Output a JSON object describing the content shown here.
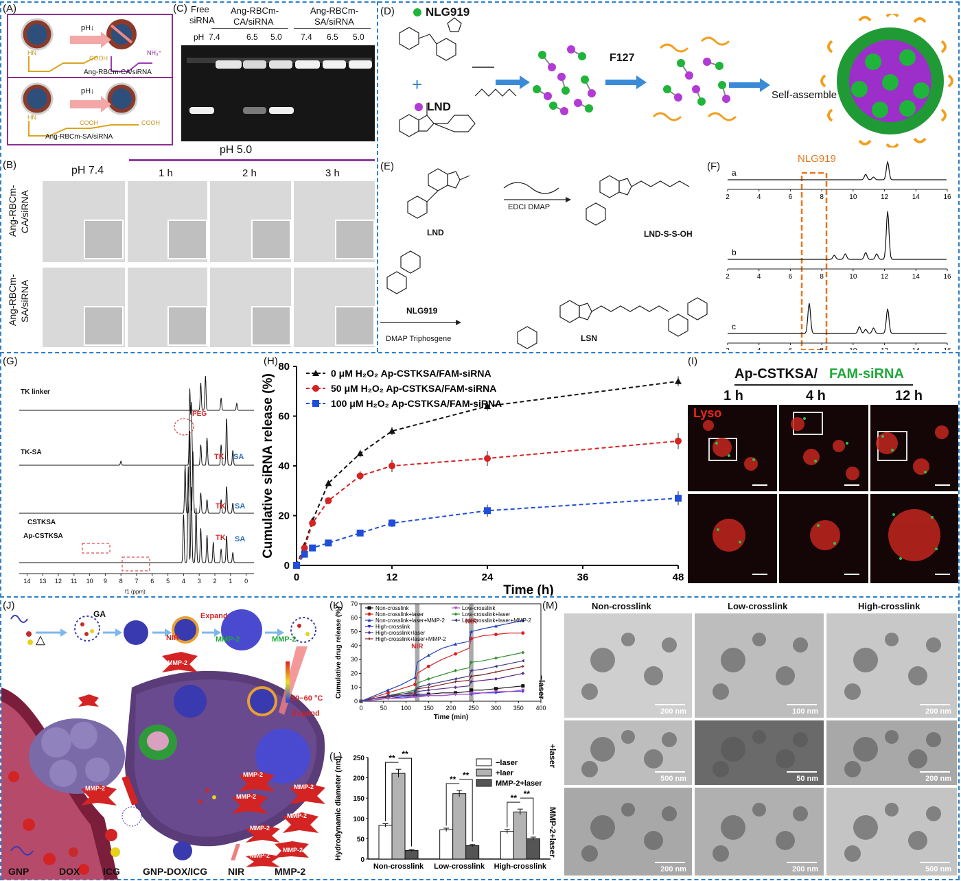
{
  "panel_letters": {
    "A": "(A)",
    "B": "(B)",
    "C": "(C)",
    "D": "(D)",
    "E": "(E)",
    "F": "(F)",
    "G": "(G)",
    "H": "(H)",
    "I": "(I)",
    "J": "(J)",
    "K": "(K)",
    "L": "(L)",
    "M": "(M)"
  },
  "panelA": {
    "ph_arrow": "pH↓",
    "caption_top": "Ang-RBCm-CA/siRNA",
    "caption_bottom": "Ang-RBCm-SA/siRNA",
    "cooh": "COOH",
    "nh3": "NH₃⁺",
    "hn": "HN",
    "o": "O"
  },
  "panelC": {
    "free": "Free",
    "sirna": "siRNA",
    "ca_label": "Ang-RBCm-CA/siRNA",
    "ca_line1": "Ang-RBCm-",
    "ca_line2": "CA/siRNA",
    "sa_line1": "Ang-RBCm-",
    "sa_line2": "SA/siRNA",
    "ph": "pH",
    "ph_values": [
      "7.4",
      "6.5",
      "5.0",
      "7.4",
      "6.5",
      "5.0"
    ]
  },
  "panelB": {
    "ph74": "pH 7.4",
    "ph50": "pH 5.0",
    "times": [
      "1 h",
      "2 h",
      "3 h"
    ],
    "row1": "Ang-RBCm-CA/siRNA",
    "row2": "Ang-RBCm-SA/siRNA",
    "row1_l1": "Ang-RBCm-",
    "row1_l2": "CA/siRNA",
    "row2_l1": "Ang-RBCm-",
    "row2_l2": "SA/siRNA"
  },
  "panelD": {
    "nlg": "NLG919",
    "lnd": "LND",
    "plus": "+",
    "f127": "F127",
    "self": "Self-assemble"
  },
  "panelE": {
    "edci": "EDCI   DMAP",
    "lnd": "LND",
    "lndss": "LND-S-S-OH",
    "nlg": "NLG919",
    "dmap": "DMAP   Triphosgene",
    "lsn": "LSN",
    "oh": "OH",
    "cl": "Cl",
    "ho": "HO"
  },
  "panelF": {
    "marker": "NLG919",
    "traces": [
      "a",
      "b",
      "c"
    ],
    "ticks": [
      "2",
      "4",
      "6",
      "8",
      "10",
      "12",
      "14",
      "16"
    ]
  },
  "panelG": {
    "tk_linker": "TK linker",
    "tk_sa": "TK-SA",
    "cstksa": "CSTKSA",
    "ap": "Ap-CSTKSA",
    "peg": "PEG",
    "tk": "TK",
    "sa": "SA",
    "xaxis": "f1 (ppm)",
    "ticks": [
      "14",
      "13",
      "12",
      "11",
      "10",
      "9",
      "8",
      "7",
      "6",
      "5",
      "4",
      "3",
      "2",
      "1",
      "0"
    ]
  },
  "panelH": {
    "chart_data": {
      "type": "line",
      "x": [
        0,
        1,
        2,
        4,
        8,
        12,
        24,
        48
      ],
      "series": [
        {
          "name": "0 μM H₂O₂ Ap-CSTKSA/FAM-siRNA",
          "values": [
            0,
            8,
            18,
            33,
            45,
            54,
            64,
            74
          ],
          "errors": [
            0,
            0.8,
            1,
            1.2,
            1.5,
            1.6,
            1.8,
            2
          ],
          "color": "#111111",
          "marker": "triangle"
        },
        {
          "name": "50 μM H₂O₂ Ap-CSTKSA/FAM-siRNA",
          "values": [
            0,
            7,
            17,
            26,
            36,
            40,
            43,
            50
          ],
          "errors": [
            0,
            0.8,
            1,
            1.2,
            1.8,
            2.5,
            3,
            3.2
          ],
          "color": "#d42323",
          "marker": "circle"
        },
        {
          "name": "100 μM H₂O₂ Ap-CSTKSA/FAM-siRNA",
          "values": [
            0,
            4.5,
            7,
            9,
            13,
            17,
            22,
            27
          ],
          "errors": [
            0,
            0.6,
            0.8,
            1,
            1.3,
            1.6,
            2.4,
            2.8
          ],
          "color": "#1f4ed8",
          "marker": "square"
        }
      ],
      "xlabel": "Time (h)",
      "ylabel": "Cumulative siRNA release (%)",
      "xlim": [
        0,
        48
      ],
      "ylim": [
        0,
        80
      ],
      "xticks": [
        0,
        12,
        24,
        36,
        48
      ],
      "yticks": [
        0,
        20,
        40,
        60,
        80
      ]
    }
  },
  "panelI": {
    "title1": "Ap-CSTKSA/",
    "title2": "FAM-siRNA",
    "times": [
      "1 h",
      "4 h",
      "12 h"
    ],
    "lyso": "Lyso"
  },
  "panelJ": {
    "ga": "GA",
    "expand": "Expand",
    "nir": "NIR",
    "mmp": "MMP-2",
    "temp": "50−60 °C",
    "legend": [
      "GNP",
      "DOX",
      "ICG",
      "GNP-DOX/ICG",
      "NIR",
      "MMP-2"
    ],
    "delta": "△"
  },
  "panelK": {
    "chart_data": {
      "type": "line",
      "x": [
        0,
        30,
        60,
        90,
        120,
        125,
        150,
        180,
        210,
        240,
        245,
        270,
        300,
        330,
        360
      ],
      "series": [
        {
          "name": "Non-crosslink",
          "values": [
            0,
            2,
            3,
            4,
            4,
            5,
            5,
            6,
            6,
            7,
            8,
            8,
            9,
            10,
            11
          ],
          "color": "#111111",
          "marker": "square"
        },
        {
          "name": "Non-crosslink+laser",
          "values": [
            0,
            3,
            6,
            9,
            12,
            20,
            25,
            30,
            34,
            38,
            45,
            47,
            48,
            49,
            49
          ],
          "color": "#d42323",
          "marker": "circle"
        },
        {
          "name": "Non-crosslink+laser+MMP-2",
          "values": [
            0,
            4,
            8,
            12,
            17,
            28,
            33,
            38,
            41,
            43,
            50,
            52,
            54,
            56,
            58
          ],
          "color": "#1f3fbf",
          "marker": "triangle"
        },
        {
          "name": "High-crosslink",
          "values": [
            0,
            1,
            2,
            3,
            3,
            4,
            4,
            4,
            5,
            5,
            5,
            6,
            6,
            7,
            7
          ],
          "color": "#2b2bd6",
          "marker": "triangle-down"
        },
        {
          "name": "High-crosslink+laser",
          "values": [
            0,
            2,
            3,
            4,
            5,
            7,
            8,
            9,
            10,
            11,
            14,
            15,
            16,
            18,
            20
          ],
          "color": "#5b2c8c",
          "marker": "diamond"
        },
        {
          "name": "High-crosslink+laser+MMP-2",
          "values": [
            0,
            2,
            3,
            5,
            6,
            9,
            10,
            12,
            14,
            15,
            18,
            19,
            21,
            23,
            25
          ],
          "color": "#7a1f1f",
          "marker": "star"
        },
        {
          "name": "Low-crosslink",
          "values": [
            0,
            1,
            2,
            2,
            3,
            3,
            4,
            4,
            5,
            5,
            6,
            6,
            7,
            7,
            8
          ],
          "color": "#b04fc4",
          "marker": "triangle-down"
        },
        {
          "name": "Low-crosslink+laser",
          "values": [
            0,
            2,
            4,
            6,
            8,
            13,
            16,
            19,
            22,
            24,
            28,
            29,
            31,
            33,
            35
          ],
          "color": "#2f8f2f",
          "marker": "diamond"
        },
        {
          "name": "Low-crosslink+laser+MMP-2",
          "values": [
            0,
            2,
            4,
            5,
            7,
            10,
            12,
            14,
            16,
            18,
            22,
            23,
            25,
            27,
            29
          ],
          "color": "#3a3a8a",
          "marker": "triangle-left"
        }
      ],
      "xlabel": "Time (min)",
      "ylabel": "Cumulative drug release (%)",
      "xlim": [
        0,
        400
      ],
      "ylim": [
        0,
        70
      ],
      "xticks": [
        0,
        50,
        100,
        150,
        200,
        250,
        300,
        350,
        400
      ],
      "yticks": [
        0,
        10,
        20,
        30,
        40,
        50,
        60,
        70
      ],
      "annotations": [
        "NIR",
        "NIR"
      ]
    }
  },
  "panelL": {
    "chart_data": {
      "type": "bar",
      "categories": [
        "Non-crosslink",
        "Low-crosslink",
        "High-crosslink"
      ],
      "series": [
        {
          "name": "−laser",
          "values": [
            83,
            72,
            68
          ],
          "errors": [
            4,
            4,
            5
          ],
          "color": "#ffffff"
        },
        {
          "name": "+laer",
          "values": [
            211,
            161,
            116
          ],
          "errors": [
            10,
            8,
            7
          ],
          "color": "#b3b3b3"
        },
        {
          "name": "MMP-2+laser",
          "values": [
            21,
            33,
            50
          ],
          "errors": [
            2,
            3,
            4
          ],
          "color": "#555555"
        }
      ],
      "ylabel": "Hydrodynamic diameter (nm)",
      "ylim": [
        0,
        250
      ],
      "yticks": [
        0,
        50,
        100,
        150,
        200,
        250
      ],
      "annotations": [
        "**",
        "**",
        "**",
        "**",
        "**",
        "**"
      ]
    }
  },
  "panelM": {
    "cols": [
      "Non-crosslink",
      "Low-crosslink",
      "High-crosslink"
    ],
    "rows": [
      "−laser",
      "+laser",
      "MMP-2+laser"
    ],
    "scales": [
      [
        "200 nm",
        "100 nm",
        "200 nm"
      ],
      [
        "500 nm",
        "50 nm",
        "200 nm"
      ],
      [
        "200 nm",
        "200 nm",
        "500 nm"
      ]
    ]
  }
}
